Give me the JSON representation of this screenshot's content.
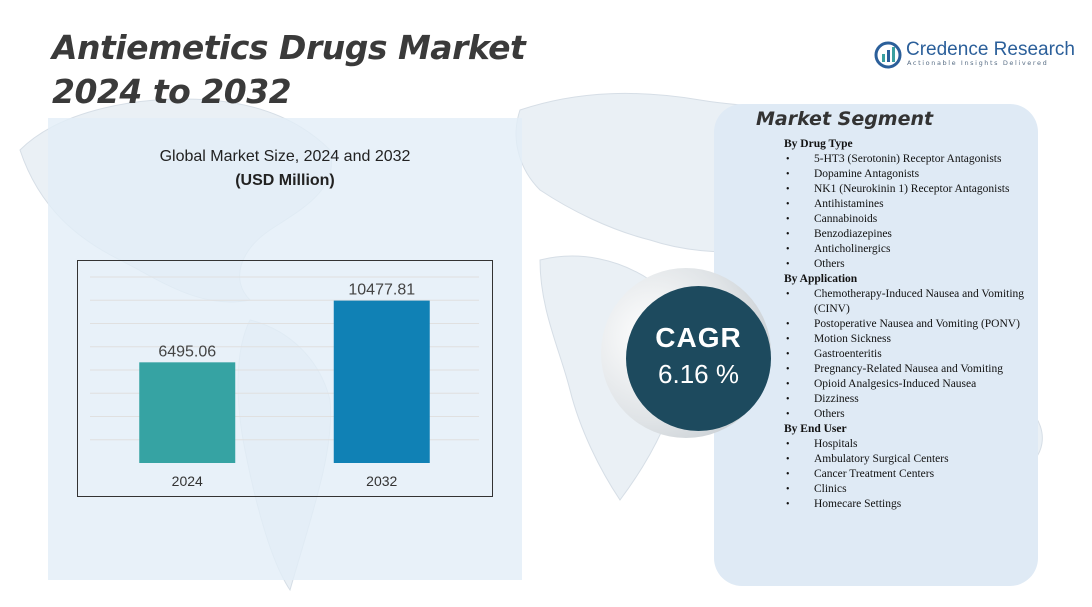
{
  "title": {
    "line1": "Antiemetics Drugs Market",
    "line2": "2024 to 2032"
  },
  "logo": {
    "name": "Credence Research",
    "tagline": "Actionable Insights Delivered",
    "brand_color": "#2b5f9a"
  },
  "chart_heading": {
    "line1": "Global Market Size, 2024 and 2032",
    "line2": "(USD Million)"
  },
  "chart_data": {
    "type": "bar",
    "title": "Global Market Size, 2024 and 2032",
    "ylabel": "(USD Million)",
    "categories": [
      "2024",
      "2032"
    ],
    "values": [
      6495.06,
      10477.81
    ],
    "value_labels": [
      "6495.06",
      "10477.81"
    ],
    "colors": [
      "#36a3a3",
      "#1081b5"
    ],
    "ylim": [
      0,
      12000
    ],
    "grid": true
  },
  "cagr": {
    "label": "CAGR",
    "value": "6.16 %"
  },
  "segments": {
    "title": "Market Segment",
    "groups": [
      {
        "title": "By Drug Type",
        "items": [
          "5-HT3 (Serotonin) Receptor Antagonists",
          "Dopamine Antagonists",
          "NK1 (Neurokinin 1) Receptor Antagonists",
          "Antihistamines",
          "Cannabinoids",
          "Benzodiazepines",
          "Anticholinergics",
          "Others"
        ]
      },
      {
        "title": "By Application",
        "items": [
          "Chemotherapy-Induced Nausea and Vomiting (CINV)",
          "Postoperative Nausea and Vomiting (PONV)",
          "Motion Sickness",
          "Gastroenteritis",
          "Pregnancy-Related Nausea and Vomiting",
          "Opioid Analgesics-Induced Nausea",
          "Dizziness",
          "Others"
        ]
      },
      {
        "title": "By End User",
        "items": [
          "Hospitals",
          "Ambulatory Surgical Centers",
          "Cancer Treatment Centers",
          "Clinics",
          "Homecare Settings"
        ]
      }
    ]
  }
}
